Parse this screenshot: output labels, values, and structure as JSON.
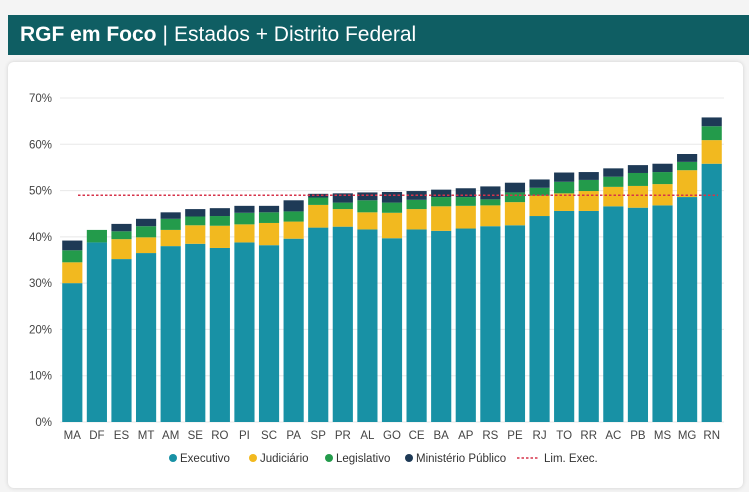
{
  "header": {
    "title_bold": "RGF em Foco",
    "separator": "|",
    "title_rest": "Estados + Distrito Federal"
  },
  "colors": {
    "header_bg": "#0f5e63",
    "executivo": "#1891a5",
    "judiciario": "#f2b91f",
    "legislativo": "#239b4b",
    "ministerio": "#1e3a56",
    "limite": "#d6334a"
  },
  "chart_data": {
    "type": "bar",
    "stacked": true,
    "categories": [
      "MA",
      "DF",
      "ES",
      "MT",
      "AM",
      "SE",
      "RO",
      "PI",
      "SC",
      "PA",
      "SP",
      "PR",
      "AL",
      "GO",
      "CE",
      "BA",
      "AP",
      "RS",
      "PE",
      "RJ",
      "TO",
      "RR",
      "AC",
      "PB",
      "MS",
      "MG",
      "RN"
    ],
    "series": [
      {
        "name": "Executivo",
        "values": [
          30.0,
          38.8,
          35.2,
          36.5,
          38.0,
          38.5,
          37.6,
          38.8,
          38.2,
          39.6,
          42.0,
          42.2,
          41.6,
          39.7,
          41.6,
          41.3,
          41.8,
          42.3,
          42.5,
          44.5,
          45.6,
          45.6,
          46.6,
          46.3,
          46.8,
          48.6,
          55.8
        ]
      },
      {
        "name": "Judiciário",
        "values": [
          4.5,
          0,
          4.3,
          3.4,
          3.5,
          4.0,
          4.8,
          3.9,
          4.8,
          3.7,
          4.9,
          3.8,
          3.7,
          5.5,
          4.4,
          5.3,
          4.9,
          4.5,
          5.0,
          4.4,
          3.8,
          4.3,
          4.2,
          4.7,
          4.6,
          5.8,
          5.1
        ]
      },
      {
        "name": "Legislativo",
        "values": [
          2.6,
          2.7,
          1.7,
          2.4,
          2.4,
          1.9,
          2.1,
          2.5,
          2.3,
          2.2,
          1.6,
          1.4,
          2.6,
          2.2,
          2.0,
          2.0,
          1.9,
          1.3,
          2.1,
          1.7,
          2.5,
          2.4,
          2.2,
          2.8,
          2.6,
          1.8,
          3.0
        ]
      },
      {
        "name": "Ministério Público",
        "values": [
          2.1,
          0,
          1.6,
          1.6,
          1.4,
          1.6,
          1.7,
          1.5,
          1.4,
          2.4,
          0.8,
          2.0,
          1.7,
          2.3,
          1.9,
          1.6,
          1.9,
          2.8,
          2.1,
          1.8,
          2.0,
          1.7,
          1.8,
          1.7,
          1.8,
          1.7,
          1.9
        ]
      }
    ],
    "limit": {
      "name": "Lim. Exec.",
      "value": 49
    },
    "ylim": [
      0,
      70
    ],
    "yticks": [
      "0%",
      "10%",
      "20%",
      "30%",
      "40%",
      "50%",
      "60%",
      "70%"
    ],
    "ytick_values": [
      0,
      10,
      20,
      30,
      40,
      50,
      60,
      70
    ],
    "grid": true,
    "legend_position": "bottom"
  }
}
